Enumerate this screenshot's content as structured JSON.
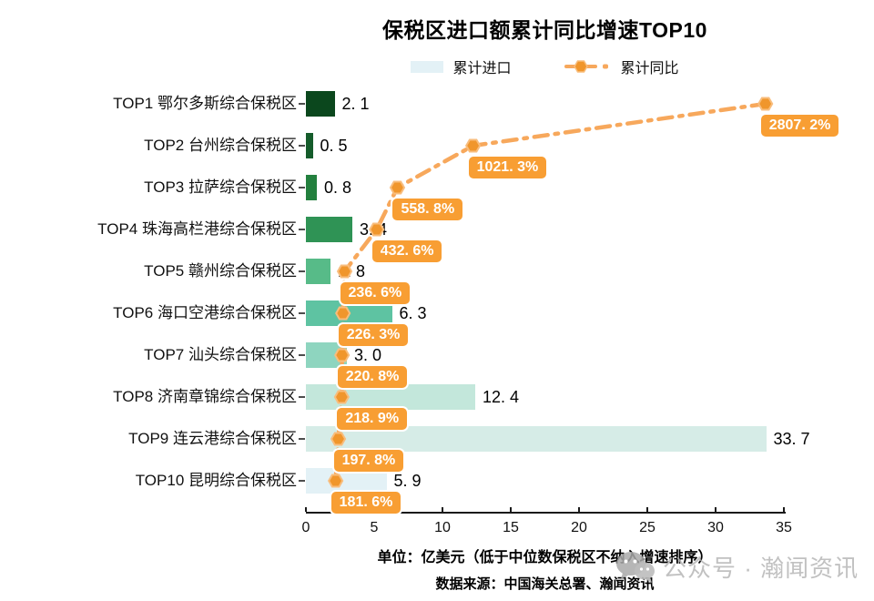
{
  "title": "保税区进口额累计同比增速TOP10",
  "legend": {
    "bar_label": "累计进口",
    "line_label": "累计同比",
    "bar_swatch_color": "#e3f1f6"
  },
  "chart_data": {
    "type": "bar",
    "orientation": "horizontal",
    "title": "保税区进口额累计同比增速TOP10",
    "categories": [
      "TOP1 鄂尔多斯综合保税区",
      "TOP2 台州综合保税区",
      "TOP3 拉萨综合保税区",
      "TOP4 珠海高栏港综合保税区",
      "TOP5 赣州综合保税区",
      "TOP6 海口空港综合保税区",
      "TOP7 汕头综合保税区",
      "TOP8 济南章锦综合保税区",
      "TOP9 连云港综合保税区",
      "TOP10 昆明综合保税区"
    ],
    "series": [
      {
        "name": "累计进口",
        "type": "bar",
        "unit": "亿美元",
        "values": [
          2.1,
          0.5,
          0.8,
          3.4,
          1.8,
          6.3,
          3.0,
          12.4,
          33.7,
          5.9
        ]
      },
      {
        "name": "累计同比",
        "type": "line",
        "unit": "%",
        "values": [
          2807.2,
          1021.3,
          558.8,
          432.6,
          236.6,
          226.3,
          220.8,
          218.9,
          197.8,
          181.6
        ]
      }
    ],
    "x_axis": {
      "ticks": [
        0,
        5,
        10,
        15,
        20,
        25,
        30,
        35
      ],
      "range": [
        0,
        35
      ]
    },
    "secondary_axis_max_pct": 2920,
    "bar_colors": [
      "#0b471d",
      "#155c2b",
      "#23803e",
      "#2f9355",
      "#57bb88",
      "#5ec3a2",
      "#8ed5bf",
      "#c3e7db",
      "#d6ece7",
      "#e3f1f6"
    ],
    "line_color": "#f7a85c",
    "marker_fill": "#f0962c",
    "marker_stroke": "#f8bd7d",
    "label_bg": "#f89e33",
    "grid": false,
    "legend_position": "top-center"
  },
  "footer": {
    "unit_note": "单位：亿美元（低于中位数保税区不纳入增速排序）",
    "source": "数据来源：中国海关总署、瀚闻资讯"
  },
  "watermark": {
    "text": "公众号 · 瀚闻资讯",
    "icon": "wechat-icon"
  }
}
